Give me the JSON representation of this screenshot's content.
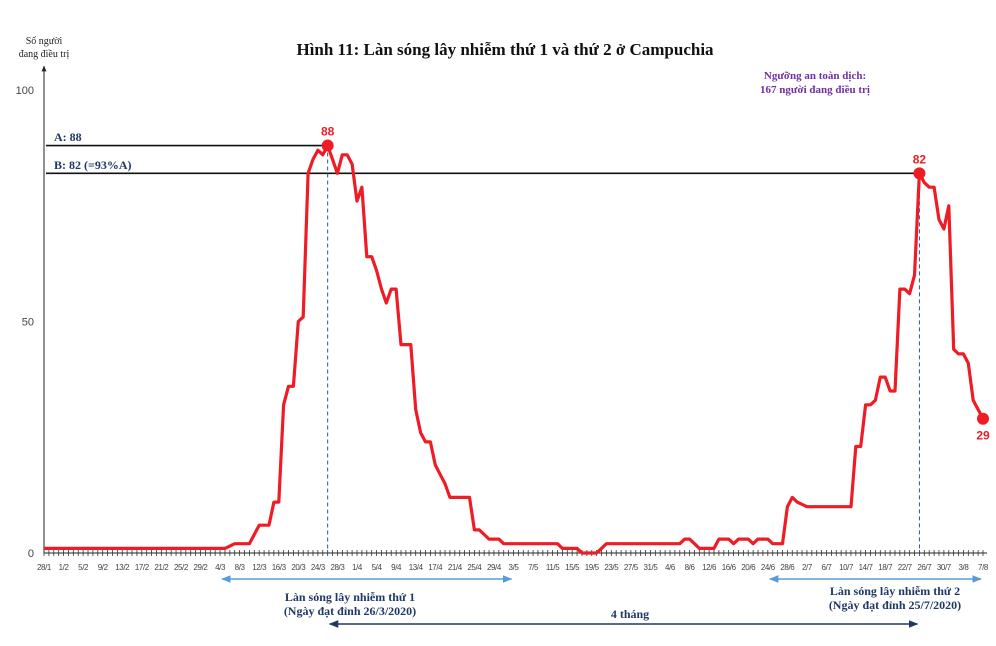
{
  "chart_data": {
    "type": "line",
    "title": "Hình 11: Làn sóng lây nhiễm thứ 1 và thứ 2 ở Campuchia",
    "ylabel_lines": [
      "Số người",
      "đang điều trị"
    ],
    "xlabel": "",
    "year": 2020,
    "ylim": [
      0,
      100
    ],
    "xlim": [
      "28/1",
      "7/8"
    ],
    "yticks": [
      0,
      50,
      100
    ],
    "xtick_labels": [
      "28/1",
      "1/2",
      "5/2",
      "9/2",
      "13/2",
      "17/2",
      "21/2",
      "25/2",
      "29/2",
      "4/3",
      "8/3",
      "12/3",
      "16/3",
      "20/3",
      "24/3",
      "28/3",
      "1/4",
      "5/4",
      "9/4",
      "13/4",
      "17/4",
      "21/4",
      "25/4",
      "29/4",
      "3/5",
      "7/5",
      "11/5",
      "15/5",
      "19/5",
      "23/5",
      "27/5",
      "31/5",
      "4/6",
      "8/6",
      "12/6",
      "16/6",
      "20/6",
      "24/6",
      "28/6",
      "2/7",
      "6/7",
      "10/7",
      "14/7",
      "18/7",
      "22/7",
      "26/7",
      "30/7",
      "3/8",
      "7/8"
    ],
    "grid": false,
    "series_color": "#ee1c24",
    "points": [
      [
        "28/1",
        1
      ],
      [
        "5/3",
        1
      ],
      [
        "7/3",
        2
      ],
      [
        "10/3",
        2
      ],
      [
        "11/3",
        4
      ],
      [
        "12/3",
        6
      ],
      [
        "14/3",
        6
      ],
      [
        "15/3",
        11
      ],
      [
        "16/3",
        11
      ],
      [
        "17/3",
        32
      ],
      [
        "18/3",
        36
      ],
      [
        "19/3",
        36
      ],
      [
        "20/3",
        50
      ],
      [
        "21/3",
        51
      ],
      [
        "22/3",
        82
      ],
      [
        "23/3",
        85
      ],
      [
        "24/3",
        87
      ],
      [
        "25/3",
        86
      ],
      [
        "26/3",
        88
      ],
      [
        "27/3",
        85
      ],
      [
        "28/3",
        82
      ],
      [
        "29/3",
        86
      ],
      [
        "30/3",
        86
      ],
      [
        "31/3",
        84
      ],
      [
        "1/4",
        76
      ],
      [
        "2/4",
        79
      ],
      [
        "3/4",
        64
      ],
      [
        "4/4",
        64
      ],
      [
        "5/4",
        61
      ],
      [
        "6/4",
        57
      ],
      [
        "7/4",
        54
      ],
      [
        "8/4",
        57
      ],
      [
        "9/4",
        57
      ],
      [
        "10/4",
        45
      ],
      [
        "12/4",
        45
      ],
      [
        "13/4",
        31
      ],
      [
        "14/4",
        26
      ],
      [
        "15/4",
        24
      ],
      [
        "16/4",
        24
      ],
      [
        "17/4",
        19
      ],
      [
        "18/4",
        17
      ],
      [
        "19/4",
        15
      ],
      [
        "20/4",
        12
      ],
      [
        "24/4",
        12
      ],
      [
        "25/4",
        5
      ],
      [
        "26/4",
        5
      ],
      [
        "27/4",
        4
      ],
      [
        "28/4",
        3
      ],
      [
        "30/4",
        3
      ],
      [
        "1/5",
        2
      ],
      [
        "12/5",
        2
      ],
      [
        "13/5",
        1
      ],
      [
        "16/5",
        1
      ],
      [
        "17/5",
        0
      ],
      [
        "20/5",
        0
      ],
      [
        "21/5",
        1
      ],
      [
        "22/5",
        2
      ],
      [
        "6/6",
        2
      ],
      [
        "7/6",
        3
      ],
      [
        "8/6",
        3
      ],
      [
        "9/6",
        2
      ],
      [
        "10/6",
        1
      ],
      [
        "13/6",
        1
      ],
      [
        "14/6",
        3
      ],
      [
        "16/6",
        3
      ],
      [
        "17/6",
        2
      ],
      [
        "18/6",
        3
      ],
      [
        "20/6",
        3
      ],
      [
        "21/6",
        2
      ],
      [
        "22/6",
        3
      ],
      [
        "24/6",
        3
      ],
      [
        "25/6",
        2
      ],
      [
        "27/6",
        2
      ],
      [
        "28/6",
        10
      ],
      [
        "29/6",
        12
      ],
      [
        "30/6",
        11
      ],
      [
        "2/7",
        10
      ],
      [
        "11/7",
        10
      ],
      [
        "12/7",
        23
      ],
      [
        "13/7",
        23
      ],
      [
        "14/7",
        32
      ],
      [
        "15/7",
        32
      ],
      [
        "16/7",
        33
      ],
      [
        "17/7",
        38
      ],
      [
        "18/7",
        38
      ],
      [
        "19/7",
        35
      ],
      [
        "20/7",
        35
      ],
      [
        "21/7",
        57
      ],
      [
        "22/7",
        57
      ],
      [
        "23/7",
        56
      ],
      [
        "24/7",
        60
      ],
      [
        "25/7",
        82
      ],
      [
        "26/7",
        80
      ],
      [
        "27/7",
        79
      ],
      [
        "28/7",
        79
      ],
      [
        "29/7",
        72
      ],
      [
        "30/7",
        70
      ],
      [
        "31/7",
        75
      ],
      [
        "1/8",
        44
      ],
      [
        "2/8",
        43
      ],
      [
        "3/8",
        43
      ],
      [
        "4/8",
        41
      ],
      [
        "5/8",
        33
      ],
      [
        "6/8",
        31
      ],
      [
        "7/8",
        29
      ]
    ],
    "data_labels": [
      {
        "date": "26/3",
        "value": 88,
        "text": "88"
      },
      {
        "date": "25/7",
        "value": 82,
        "text": "82"
      },
      {
        "date": "7/8",
        "value": 29,
        "text": "29"
      }
    ],
    "reference_lines": [
      {
        "value": 88,
        "label": "A: 88",
        "to": "26/3"
      },
      {
        "value": 82,
        "label": "B: 82 (=93%A)",
        "to": "25/7"
      }
    ],
    "safety_threshold_lines": [
      "Ngưỡng an toàn dịch:",
      "167 người đang điều trị"
    ],
    "threshold_color": "#7030a0",
    "ref_label_color": "#1f3864",
    "wave1": {
      "from": "4/3",
      "to": "3/5",
      "lines": [
        "Làn sóng lây nhiễm thứ 1",
        "(Ngày đạt đỉnh 26/3/2020)"
      ]
    },
    "wave2": {
      "from": "24/6",
      "to": "7/8",
      "lines": [
        "Làn sóng lây nhiễm thứ 2",
        "(Ngày đạt đỉnh 25/7/2020)"
      ]
    },
    "interval": {
      "from": "26/3",
      "to": "25/7",
      "label": "4 tháng"
    },
    "bracket_color": "#5b9bd5",
    "interval_color": "#1f3864"
  }
}
